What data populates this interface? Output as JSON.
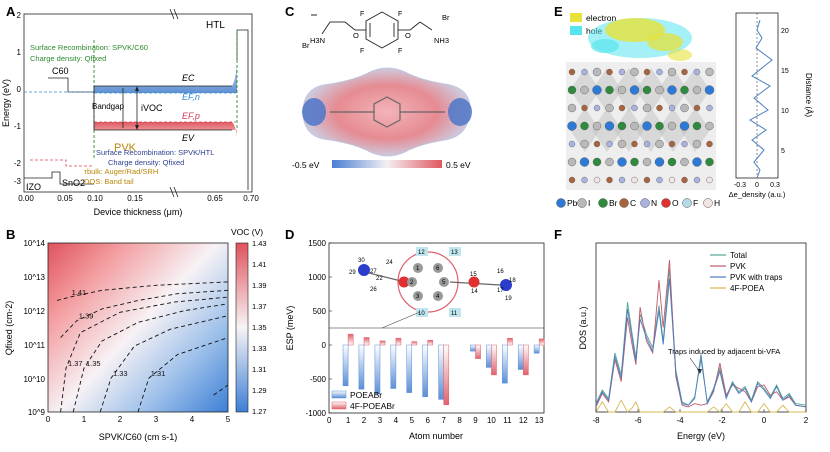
{
  "colors": {
    "ec_band": "#4f82c9",
    "ev_band": "#e0606b",
    "surface_text": "#2e8a2e",
    "vbm_text": "#2c3f8f",
    "pvk_text": "#b8860b",
    "efn": "#2f8fd6",
    "efp": "#d04060",
    "poeabr": "#5b8fd6",
    "f4poeabr": "#e0606b",
    "dos_total": "#5aa39a",
    "dos_pvk": "#c05a6a",
    "dos_traps": "#4a7fbf",
    "dos_f4": "#d8b850"
  },
  "panels": {
    "a": {
      "label": "A",
      "xlabel": "Device thickness (μm)",
      "ylabel": "Energy (eV)",
      "xticks": [
        "0.00",
        "0.05",
        "0.10",
        "0.15",
        "0.65",
        "0.70"
      ],
      "yticks": [
        "2",
        "1",
        "0",
        "-1",
        "-2",
        "-3",
        "-4"
      ],
      "htl": "HTL",
      "c60": "C60",
      "pvk": "PVK",
      "izo": "IZO",
      "sno": "SnO2",
      "ec": "EC",
      "efn": "EF,n",
      "efp": "EF,p",
      "ev": "EV",
      "bandgap": "Bandgap",
      "ivoc": "iVOC",
      "surf_top_1": "Surface Recombination: SPVK/C60",
      "surf_top_2": "Charge density: Qfixed",
      "surf_bot_1": "Surface Recombination: SPVK/HTL",
      "surf_bot_2": "Charge density: Qfixed",
      "tau": "τbulk: Auger/Rad/SRH",
      "dos_tail": "DOS: Band tail"
    },
    "b": {
      "label": "B",
      "xlabel": "SPVK/C60 (cm s-1)",
      "ylabel": "Qfixed (cm-2)",
      "colorbar_title": "VOC (V)",
      "colorbar_ticks": [
        "1.43",
        "1.41",
        "1.39",
        "1.37",
        "1.35",
        "1.33",
        "1.31",
        "1.29",
        "1.27"
      ],
      "xticks": [
        "0",
        "1",
        "2",
        "3",
        "4",
        "5"
      ],
      "yticks": [
        "10^14",
        "10^13",
        "10^12",
        "10^11",
        "10^10",
        "10^9"
      ],
      "contour_labels": [
        "1.41",
        "1.39",
        "1.37",
        "1.35",
        "1.33",
        "1.31",
        "1.29"
      ]
    },
    "c": {
      "label": "C",
      "left_br": "Br",
      "left_nh3": "H3N",
      "right_br": "Br",
      "right_nh3": "NH3",
      "o_left": "O",
      "o_right": "O",
      "f1": "F",
      "f2": "F",
      "f3": "F",
      "f4": "F",
      "scale_min": "-0.5 eV",
      "scale_max": "0.5 eV"
    },
    "d": {
      "label": "D",
      "xlabel": "Atom number",
      "ylabel": "ESP (meV)",
      "atom_labels": [
        "30",
        "29",
        "27",
        "22",
        "24",
        "26",
        "12",
        "13",
        "1",
        "2",
        "3",
        "4",
        "5",
        "6",
        "15",
        "16",
        "18",
        "14",
        "17",
        "19",
        "10",
        "11"
      ]
    },
    "e": {
      "label": "E",
      "legend_electron": "electron",
      "legend_hole": "hole",
      "side_xlabel": "Δe_density (a.u.)",
      "side_ylabel": "Distance (Å)",
      "side_xticks": [
        "-0.3",
        "0",
        "0.3"
      ],
      "side_yticks": [
        "20",
        "15",
        "10",
        "5"
      ],
      "elements": [
        {
          "sym": "Pb",
          "color": "#2d7ad6"
        },
        {
          "sym": "I",
          "color": "#b9b9b9"
        },
        {
          "sym": "Br",
          "color": "#2e8b3e"
        },
        {
          "sym": "C",
          "color": "#a8643c"
        },
        {
          "sym": "N",
          "color": "#a9b2e0"
        },
        {
          "sym": "O",
          "color": "#e03030"
        },
        {
          "sym": "F",
          "color": "#b5d9e8"
        },
        {
          "sym": "H",
          "color": "#f0e4e4"
        }
      ]
    },
    "f": {
      "label": "F",
      "xlabel": "Energy (eV)",
      "ylabel": "DOS (a.u.)",
      "xticks": [
        "-8",
        "-6",
        "-4",
        "-2",
        "0",
        "2"
      ],
      "annotation": "Traps induced by adjacent bi-VFA",
      "legend": [
        "Total",
        "PVK",
        "PVK with traps",
        "4F-POEA"
      ]
    }
  },
  "chart_data": [
    {
      "panel": "B",
      "type": "heatmap",
      "xlabel": "SPVK/C60 (cm s-1)",
      "ylabel": "Qfixed (cm-2)",
      "xlim": [
        0,
        5
      ],
      "ylim_log10": [
        9,
        14
      ],
      "colorbar": {
        "title": "VOC (V)",
        "range": [
          1.27,
          1.43
        ]
      },
      "contours": [
        {
          "level": 1.41,
          "points": [
            [
              0.25,
              12.3
            ],
            [
              0.6,
              12.4
            ],
            [
              1.5,
              12.6
            ],
            [
              3,
              12.75
            ],
            [
              5,
              12.85
            ]
          ]
        },
        {
          "level": 1.39,
          "points": [
            [
              0.35,
              11.2
            ],
            [
              0.8,
              11.7
            ],
            [
              1.5,
              12.05
            ],
            [
              2.5,
              12.3
            ],
            [
              3.6,
              12.5
            ],
            [
              5,
              12.6
            ]
          ]
        },
        {
          "level": 1.37,
          "points": [
            [
              0.35,
              9.0
            ],
            [
              0.5,
              10.3
            ],
            [
              0.9,
              11.35
            ],
            [
              2,
              11.95
            ],
            [
              3.5,
              12.25
            ],
            [
              5,
              12.4
            ]
          ]
        },
        {
          "level": 1.35,
          "points": [
            [
              0.7,
              9.0
            ],
            [
              1,
              10.3
            ],
            [
              1.5,
              11.1
            ],
            [
              2.5,
              11.65
            ],
            [
              3.8,
              12
            ],
            [
              5,
              12.2
            ]
          ]
        },
        {
          "level": 1.33,
          "points": [
            [
              1.45,
              9.0
            ],
            [
              1.75,
              10
            ],
            [
              2.4,
              10.95
            ],
            [
              3.4,
              11.45
            ],
            [
              5,
              11.85
            ]
          ]
        },
        {
          "level": 1.31,
          "points": [
            [
              2.5,
              9.0
            ],
            [
              2.8,
              10
            ],
            [
              3.6,
              10.7
            ],
            [
              5,
              11.2
            ]
          ]
        },
        {
          "level": 1.29,
          "points": [
            [
              4.6,
              9.5
            ],
            [
              5,
              9.8
            ]
          ]
        }
      ]
    },
    {
      "panel": "D",
      "type": "bar",
      "xlabel": "Atom number",
      "ylabel": "ESP (meV)",
      "ylim": [
        -1000,
        1500
      ],
      "categories": [
        1,
        2,
        3,
        4,
        5,
        6,
        7,
        8,
        9,
        10,
        11,
        12,
        13
      ],
      "series": [
        {
          "name": "POEABr",
          "values": [
            -600,
            -650,
            -720,
            -640,
            -700,
            -760,
            -800,
            null,
            -90,
            -330,
            -560,
            -360,
            -120
          ]
        },
        {
          "name": "4F-POEABr",
          "values": [
            160,
            110,
            60,
            100,
            50,
            70,
            -880,
            null,
            -200,
            -440,
            100,
            -440,
            90
          ]
        }
      ]
    },
    {
      "panel": "F",
      "type": "line",
      "xlabel": "Energy (eV)",
      "ylabel": "DOS (a.u.)",
      "xlim": [
        -8,
        2
      ],
      "series": [
        {
          "name": "Total",
          "x": [
            -8,
            -7.7,
            -7.4,
            -7.1,
            -6.8,
            -6.5,
            -6.3,
            -6.1,
            -5.9,
            -5.6,
            -5.3,
            -5,
            -4.8,
            -4.5,
            -4.2,
            -3.9,
            -3.6,
            -3.3,
            -3,
            -2.7,
            -2.4,
            -2.1,
            -1.8,
            -1.5,
            -1.2,
            -0.9,
            -0.6,
            -0.3,
            0,
            0.3,
            0.6,
            0.9,
            1.2,
            1.5,
            2
          ],
          "y": [
            0.5,
            1.3,
            0.8,
            3.5,
            2.2,
            6.5,
            4.8,
            3.2,
            5.8,
            4.6,
            3.8,
            6.3,
            4.2,
            8.5,
            2.5,
            0.6,
            0.4,
            0.9,
            3.1,
            0.6,
            1.4,
            2.6,
            0.9,
            1.8,
            1.2,
            1.5,
            0.7,
            1.8,
            1.4,
            0.9,
            1.6,
            0.8,
            1.1,
            0.5,
            0.4
          ]
        },
        {
          "name": "PVK",
          "x": [
            -8,
            -7.7,
            -7.4,
            -7.1,
            -6.8,
            -6.5,
            -6.3,
            -6.1,
            -5.9,
            -5.6,
            -5.3,
            -5,
            -4.8,
            -4.5,
            -4.2,
            -3.9,
            -3.6,
            -3.3,
            -3,
            -2.7,
            -2.4,
            -2.1,
            -1.8,
            -1.5,
            -1.2,
            -0.9,
            -0.6,
            -0.3,
            0,
            0.3,
            0.6,
            0.9,
            1.2,
            1.5,
            2
          ],
          "y": [
            0.3,
            1.1,
            0.6,
            3.1,
            1.8,
            5.6,
            4.1,
            2.8,
            6.2,
            4.2,
            3.5,
            7.8,
            5,
            9,
            2.1,
            0.4,
            0.3,
            0.5,
            0.4,
            0.5,
            1.2,
            2.9,
            1,
            1.6,
            1.4,
            1.2,
            0.6,
            1.5,
            1.6,
            1,
            1.2,
            0.7,
            0.9,
            0.4,
            0.3
          ]
        },
        {
          "name": "PVK with traps",
          "x": [
            -8,
            -7.7,
            -7.4,
            -7.1,
            -6.8,
            -6.5,
            -6.3,
            -6.1,
            -5.9,
            -5.6,
            -5.3,
            -5,
            -4.8,
            -4.5,
            -4.2,
            -3.9,
            -3.6,
            -3.3,
            -3,
            -2.7,
            -2.4,
            -2.1,
            -1.8,
            -1.5,
            -1.2,
            -0.9,
            -0.6,
            -0.3,
            0,
            0.3,
            0.6,
            0.9,
            1.2,
            1.5,
            2
          ],
          "y": [
            0.4,
            1.2,
            0.7,
            3.3,
            2,
            6.1,
            4.5,
            3,
            5.5,
            4.4,
            3.6,
            6,
            4,
            7.9,
            2.3,
            0.5,
            0.4,
            0.8,
            3.4,
            0.5,
            1.3,
            2.4,
            0.8,
            1.7,
            1.1,
            1.4,
            0.6,
            1.7,
            1.3,
            0.8,
            1.5,
            0.7,
            1,
            0.4,
            0.3
          ]
        },
        {
          "name": "4F-POEA",
          "x": [
            -8,
            -7.7,
            -7.4,
            -7.1,
            -6.8,
            -6.5,
            -6.3,
            -6.1,
            -5.9,
            -5.6,
            -5.3,
            -5,
            -4.8,
            -4.5,
            -4.2,
            -3.9,
            -3.6,
            -3.3,
            -3,
            -2.7,
            -2.4,
            -2.1,
            -1.8,
            -1.5,
            -1.2,
            -0.9,
            -0.6,
            -0.3,
            0,
            0.3,
            0.6,
            0.9,
            1.2,
            1.5,
            2
          ],
          "y": [
            0,
            0.6,
            0,
            0,
            0.7,
            0,
            0.2,
            0.6,
            0,
            0,
            0,
            0,
            0,
            0.3,
            0,
            0,
            0,
            0,
            0,
            0,
            0.3,
            0,
            0.5,
            0,
            0,
            0.6,
            0,
            0,
            0.5,
            0,
            0,
            0.4,
            0,
            0,
            0
          ]
        }
      ]
    }
  ]
}
